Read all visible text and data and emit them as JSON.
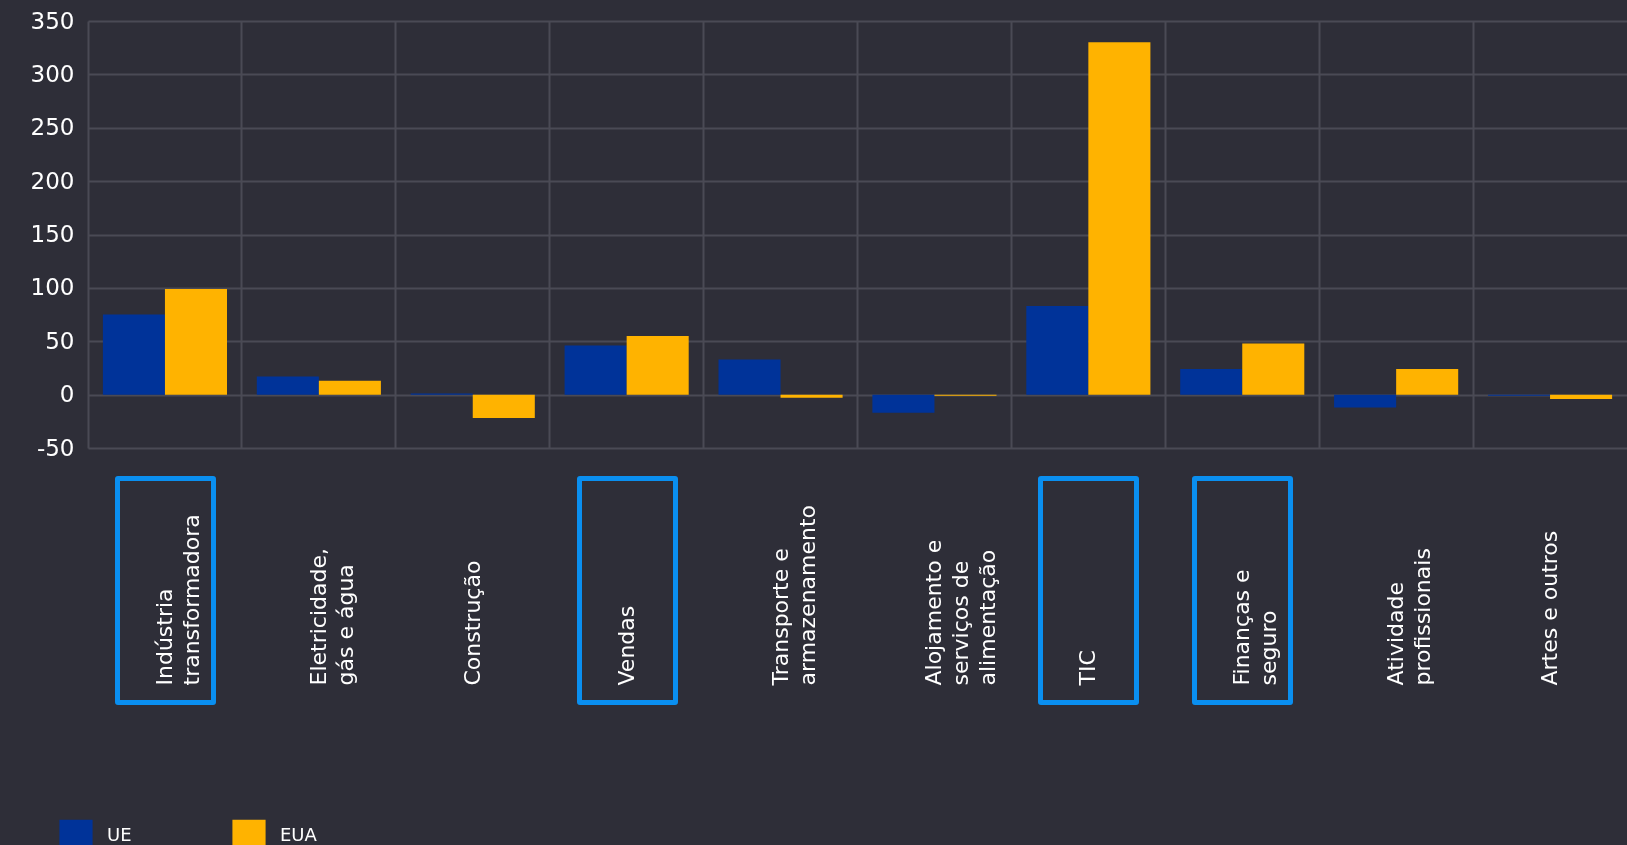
{
  "chart_data": {
    "type": "bar",
    "categories": [
      "Indústria transformadora",
      "Eletricidade, gás e água",
      "Construção",
      "Vendas",
      "Transporte e armazenamento",
      "Alojamento e serviços de alimentação",
      "TIC",
      "Finanças e seguro",
      "Atividade profissionais",
      "Artes e outros"
    ],
    "series": [
      {
        "name": "UE",
        "color": "#003399",
        "values": [
          75,
          17,
          1,
          46,
          33,
          -17,
          83,
          24,
          -12,
          -1
        ]
      },
      {
        "name": "EUA",
        "color": "#ffb300",
        "values": [
          99,
          13,
          -22,
          55,
          -3,
          -1,
          330,
          48,
          24,
          -4
        ]
      }
    ],
    "ylim": [
      -50,
      350
    ],
    "yticks": [
      -50,
      0,
      50,
      100,
      150,
      200,
      250,
      300,
      350
    ],
    "grid": true,
    "legend": "bottom left"
  }
}
